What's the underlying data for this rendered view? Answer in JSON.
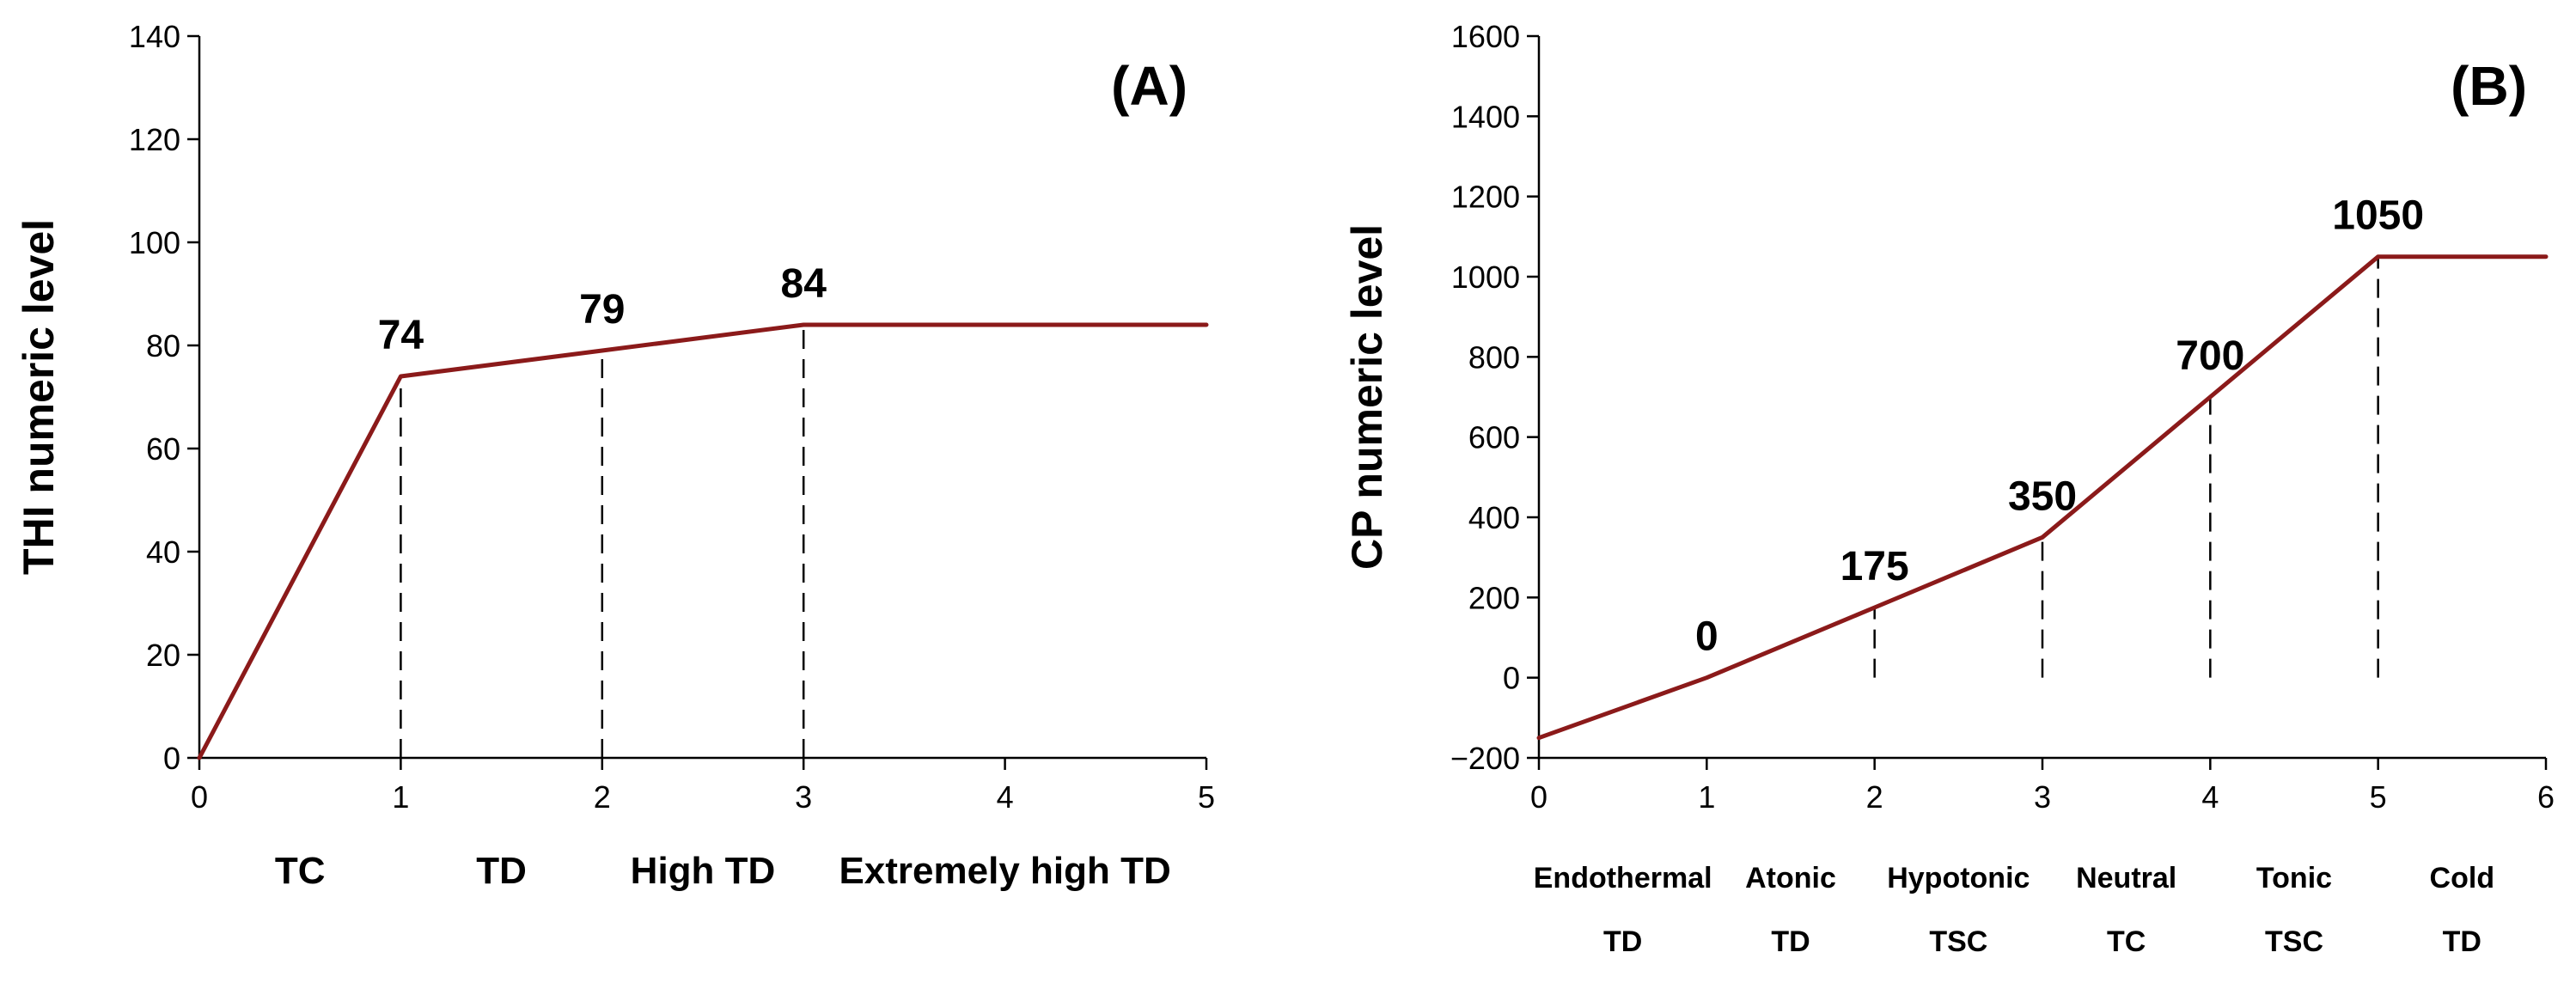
{
  "chart_data": [
    {
      "type": "line",
      "panel_label": "(A)",
      "xlabel": "",
      "ylabel": "THI numeric level",
      "xlim": [
        0,
        5
      ],
      "ylim": [
        0,
        140
      ],
      "x_ticks": [
        0,
        1,
        2,
        3,
        4,
        5
      ],
      "y_ticks": [
        0,
        20,
        40,
        60,
        80,
        100,
        120,
        140
      ],
      "x": [
        0,
        1,
        2,
        3,
        5
      ],
      "y": [
        0,
        74,
        79,
        84,
        84
      ],
      "line_color": "#8B1A1A",
      "point_labels": [
        {
          "x": 1,
          "y": 74,
          "text": "74"
        },
        {
          "x": 2,
          "y": 79,
          "text": "79"
        },
        {
          "x": 3,
          "y": 84,
          "text": "84"
        }
      ],
      "dashed_drops_at_x": [
        1,
        2,
        3
      ],
      "categories": [
        {
          "center": 0.5,
          "lines": [
            "TC"
          ]
        },
        {
          "center": 1.5,
          "lines": [
            "TD"
          ]
        },
        {
          "center": 2.5,
          "lines": [
            "High TD"
          ]
        },
        {
          "center": 4.0,
          "lines": [
            "Extremely high TD"
          ]
        }
      ]
    },
    {
      "type": "line",
      "panel_label": "(B)",
      "xlabel": "",
      "ylabel": "CP numeric level",
      "xlim": [
        0,
        6
      ],
      "ylim": [
        -200,
        1600
      ],
      "x_ticks": [
        0,
        1,
        2,
        3,
        4,
        5,
        6
      ],
      "y_ticks": [
        -200,
        0,
        200,
        400,
        600,
        800,
        1000,
        1200,
        1400,
        1600
      ],
      "x": [
        0,
        1,
        2,
        3,
        4,
        5,
        6
      ],
      "y": [
        -150,
        0,
        175,
        350,
        700,
        1050,
        1050
      ],
      "line_color": "#8B1A1A",
      "point_labels": [
        {
          "x": 1,
          "y": 0,
          "text": "0"
        },
        {
          "x": 2,
          "y": 175,
          "text": "175"
        },
        {
          "x": 3,
          "y": 350,
          "text": "350"
        },
        {
          "x": 4,
          "y": 700,
          "text": "700"
        },
        {
          "x": 5,
          "y": 1050,
          "text": "1050"
        }
      ],
      "dashed_drops_at_x": [
        1,
        2,
        3,
        4,
        5
      ],
      "categories": [
        {
          "center": 0.5,
          "lines": [
            "Endothermal",
            "TD"
          ]
        },
        {
          "center": 1.5,
          "lines": [
            "Atonic",
            "TD"
          ]
        },
        {
          "center": 2.5,
          "lines": [
            "Hypotonic",
            "TSC"
          ]
        },
        {
          "center": 3.5,
          "lines": [
            "Neutral",
            "TC"
          ]
        },
        {
          "center": 4.5,
          "lines": [
            "Tonic",
            "TSC"
          ]
        },
        {
          "center": 5.5,
          "lines": [
            "Cold",
            "TD"
          ]
        }
      ]
    }
  ]
}
